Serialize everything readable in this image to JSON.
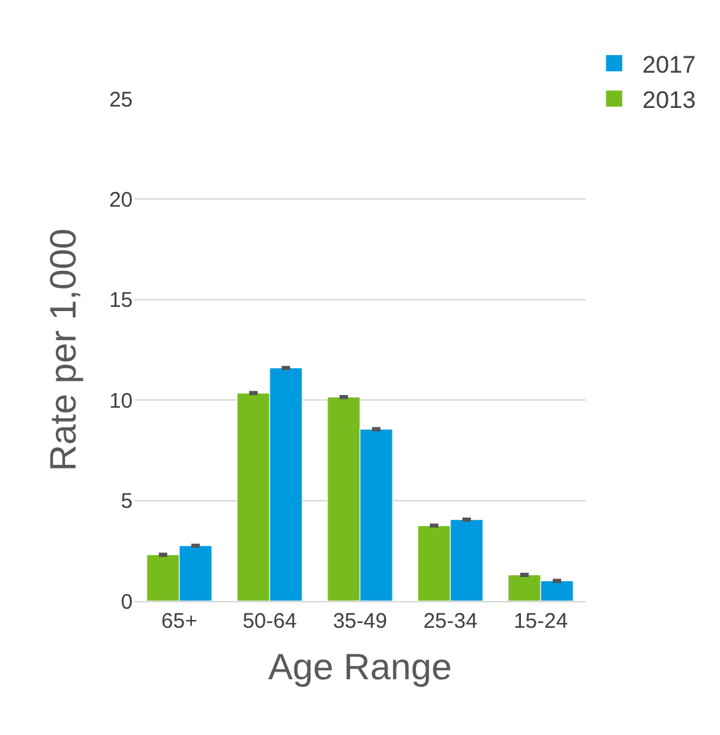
{
  "chart_data": {
    "type": "bar",
    "xlabel": "Age Range",
    "ylabel": "Rate per 1,000",
    "categories": [
      "65+",
      "50-64",
      "35-49",
      "25-34",
      "15-24"
    ],
    "series": [
      {
        "name": "2013",
        "color": "#77bc1f",
        "values": [
          2.3,
          10.35,
          10.15,
          3.75,
          1.3
        ],
        "errors": [
          0.05,
          0.05,
          0.05,
          0.05,
          0.05
        ]
      },
      {
        "name": "2017",
        "color": "#009ade",
        "values": [
          2.75,
          11.6,
          8.55,
          4.05,
          1.0
        ],
        "errors": [
          0.05,
          0.05,
          0.05,
          0.05,
          0.05
        ]
      }
    ],
    "ylim": [
      0,
      25
    ],
    "yticks": [
      0,
      5,
      10,
      15,
      20,
      25
    ],
    "grid": "y",
    "legend": "top right"
  }
}
